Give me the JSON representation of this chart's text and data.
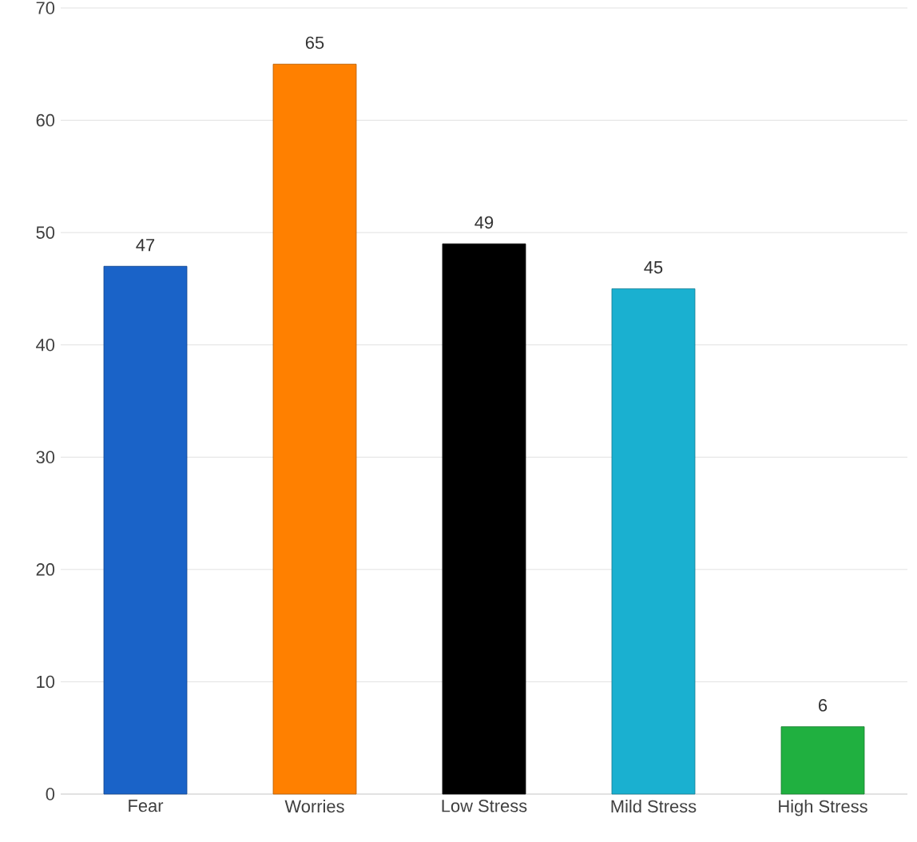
{
  "chart_data": {
    "type": "bar",
    "categories": [
      "Fear",
      "Worries",
      "Low Stress",
      "Mild Stress",
      "High Stress"
    ],
    "values": [
      47,
      65,
      49,
      45,
      6
    ],
    "colors": [
      "#1a63c8",
      "#ff8000",
      "#000000",
      "#1ab0d0",
      "#20b040"
    ],
    "ylim": [
      0,
      70
    ],
    "yticks": [
      0,
      10,
      20,
      30,
      40,
      50,
      60,
      70
    ],
    "grid": "y",
    "data_labels": true
  }
}
